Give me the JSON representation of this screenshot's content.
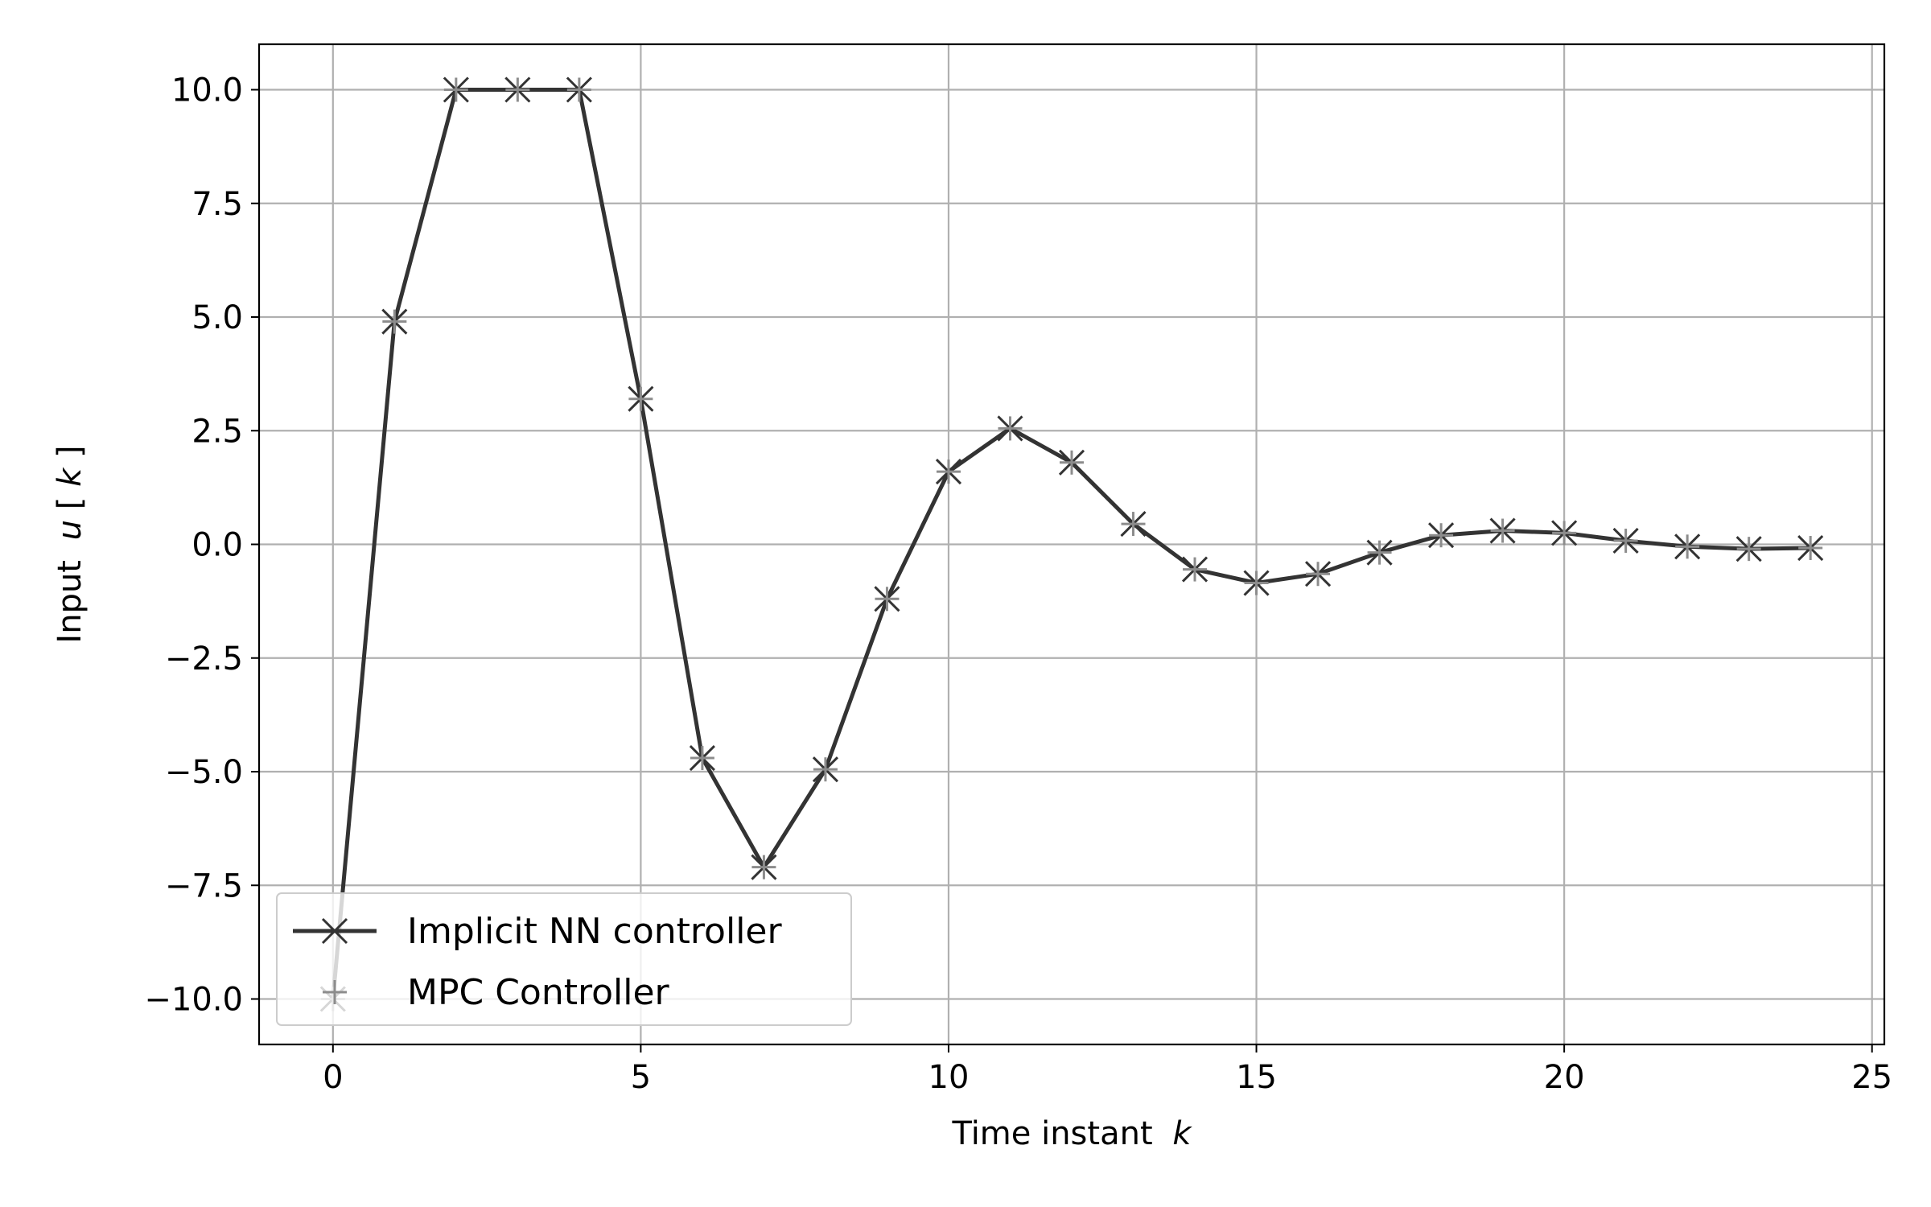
{
  "chart_data": {
    "type": "line",
    "title": "",
    "xlabel": "Time instant",
    "xlabel_var": "k",
    "ylabel": "Input",
    "ylabel_var": "u",
    "ylabel_open": "[",
    "ylabel_index": "k",
    "ylabel_close": "]",
    "xlim": [
      -1.2,
      25.2
    ],
    "ylim": [
      -11.0,
      11.0
    ],
    "xticks": [
      0,
      5,
      10,
      15,
      20,
      25
    ],
    "yticks": [
      10.0,
      7.5,
      5.0,
      2.5,
      0.0,
      -2.5,
      -5.0,
      -7.5,
      -10.0
    ],
    "xtick_labels": [
      "0",
      "5",
      "10",
      "15",
      "20",
      "25"
    ],
    "ytick_labels": [
      "10.0",
      "7.5",
      "5.0",
      "2.5",
      "0.0",
      "−2.5",
      "−5.0",
      "−7.5",
      "−10.0"
    ],
    "grid": true,
    "legend_position": "lower-left",
    "x": [
      0,
      1,
      2,
      3,
      4,
      5,
      6,
      7,
      8,
      9,
      10,
      11,
      12,
      13,
      14,
      15,
      16,
      17,
      18,
      19,
      20,
      21,
      22,
      23,
      24
    ],
    "series": [
      {
        "name": "Implicit NN controller",
        "color": "#333333",
        "marker": "x",
        "line": true,
        "values": [
          -10.0,
          4.9,
          10.0,
          10.0,
          10.0,
          3.2,
          -4.7,
          -7.1,
          -4.95,
          -1.2,
          1.6,
          2.55,
          1.8,
          0.45,
          -0.55,
          -0.85,
          -0.65,
          -0.18,
          0.2,
          0.3,
          0.25,
          0.08,
          -0.05,
          -0.1,
          -0.08
        ]
      },
      {
        "name": "MPC Controller",
        "color": "#8c8c8c",
        "marker": "+",
        "line": false,
        "values": [
          -10.0,
          4.9,
          10.0,
          10.0,
          10.0,
          3.2,
          -4.7,
          -7.1,
          -4.95,
          -1.2,
          1.6,
          2.55,
          1.8,
          0.45,
          -0.55,
          -0.85,
          -0.65,
          -0.18,
          0.2,
          0.3,
          0.25,
          0.08,
          -0.05,
          -0.1,
          -0.08
        ]
      }
    ]
  }
}
